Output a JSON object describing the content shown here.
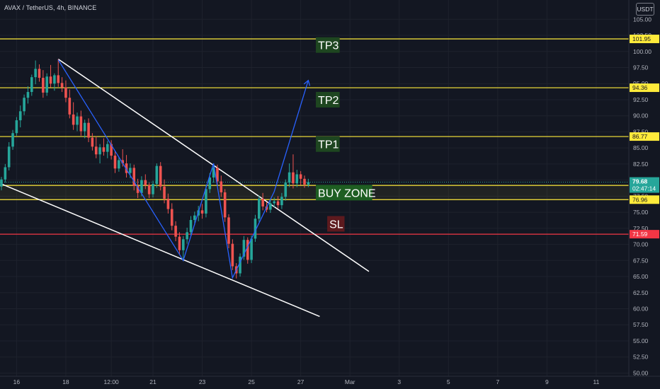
{
  "header": {
    "title": "AVAX / TetherUS, 4h, BINANCE",
    "currency": "USDT"
  },
  "colors": {
    "background": "#131722",
    "up": "#26a69a",
    "down": "#ef5350",
    "level": "#ffeb3b",
    "sl": "#f23645",
    "pattern": "#ffffff",
    "wave": "#2962ff"
  },
  "chart_data": {
    "type": "candlestick",
    "y_axis_ticks": [
      "105.00",
      "102.50",
      "100.00",
      "97.50",
      "95.00",
      "92.50",
      "90.00",
      "87.50",
      "85.00",
      "82.50",
      "80.00",
      "77.50",
      "75.00",
      "72.50",
      "70.00",
      "67.50",
      "65.00",
      "62.50",
      "60.00",
      "57.50",
      "55.00",
      "52.50",
      "50.00"
    ],
    "y_tick_values": [
      105,
      102.5,
      100,
      97.5,
      95,
      92.5,
      90,
      87.5,
      85,
      82.5,
      80,
      77.5,
      75,
      72.5,
      70,
      67.5,
      65,
      62.5,
      60,
      57.5,
      55,
      52.5,
      50
    ],
    "x_axis_ticks": [
      "16",
      "18",
      "12:00",
      "21",
      "23",
      "25",
      "27",
      "Mar",
      "3",
      "5",
      "7",
      "9",
      "11"
    ],
    "x_tick_index": [
      4,
      17,
      29,
      40,
      53,
      66,
      79,
      92,
      105,
      118,
      131,
      144,
      157
    ],
    "ylim": [
      49.5,
      108
    ],
    "last_price": "79.68",
    "countdown": "02:47:14",
    "levels": [
      {
        "name": "TP3",
        "value": "101.95",
        "price": 101.95
      },
      {
        "name": "TP2",
        "value": "94.36",
        "price": 94.36
      },
      {
        "name": "TP1",
        "value": "86.77",
        "price": 86.77
      },
      {
        "name": "BUY ZONE top",
        "value": "79.18",
        "price": 79.18
      },
      {
        "name": "BUY ZONE bottom",
        "value": "76.96",
        "price": 76.96
      },
      {
        "name": "SL",
        "value": "71.59",
        "price": 71.59
      }
    ],
    "annotations": [
      {
        "text": "TP3",
        "price": 101.0,
        "idx": 83,
        "bg": "#1e4620"
      },
      {
        "text": "TP2",
        "price": 92.5,
        "idx": 83,
        "bg": "#1e4620"
      },
      {
        "text": "TP1",
        "price": 85.6,
        "idx": 83,
        "bg": "#1e4620"
      },
      {
        "text": "BUY ZONE",
        "price": 78.05,
        "idx": 83,
        "bg": "#1e5e22"
      },
      {
        "text": "SL",
        "price": 73.2,
        "idx": 86,
        "bg": "#5d1a1e"
      }
    ],
    "buy_zone": {
      "from": 76.96,
      "to": 79.18
    },
    "trendlines": [
      {
        "from": [
          15,
          98.8
        ],
        "to": [
          97,
          65.8
        ]
      },
      {
        "from": [
          0,
          79.4
        ],
        "to": [
          84,
          58.8
        ]
      }
    ],
    "wave_path": [
      [
        15,
        98.7
      ],
      [
        48,
        67.5
      ],
      [
        56,
        82.6
      ],
      [
        61,
        64.8
      ],
      [
        72,
        78.2
      ],
      [
        81,
        95.5
      ]
    ],
    "candles": [
      [
        79.0,
        80.5,
        78.4,
        80.1
      ],
      [
        80.1,
        82.5,
        79.6,
        82.0
      ],
      [
        82.0,
        85.9,
        81.5,
        85.2
      ],
      [
        85.2,
        87.8,
        84.7,
        87.3
      ],
      [
        87.3,
        89.8,
        86.9,
        89.3
      ],
      [
        89.3,
        91.6,
        88.2,
        90.7
      ],
      [
        90.7,
        93.3,
        90.1,
        92.8
      ],
      [
        92.8,
        94.6,
        91.9,
        93.7
      ],
      [
        93.7,
        96.4,
        93.1,
        96.0
      ],
      [
        96.0,
        98.6,
        94.9,
        97.3
      ],
      [
        97.3,
        98.0,
        95.3,
        95.9
      ],
      [
        95.9,
        97.1,
        92.8,
        93.6
      ],
      [
        93.6,
        96.6,
        93.1,
        96.1
      ],
      [
        96.1,
        97.9,
        94.4,
        95.0
      ],
      [
        95.0,
        96.6,
        93.9,
        96.3
      ],
      [
        96.3,
        98.8,
        94.5,
        95.1
      ],
      [
        95.1,
        96.0,
        93.7,
        94.4
      ],
      [
        94.4,
        95.5,
        92.1,
        92.8
      ],
      [
        92.8,
        94.1,
        89.6,
        90.2
      ],
      [
        90.2,
        92.1,
        87.8,
        88.6
      ],
      [
        88.6,
        90.5,
        87.6,
        89.9
      ],
      [
        89.9,
        90.8,
        86.9,
        87.6
      ],
      [
        87.6,
        89.4,
        86.5,
        88.9
      ],
      [
        88.9,
        89.6,
        85.9,
        86.6
      ],
      [
        86.6,
        87.3,
        84.6,
        85.2
      ],
      [
        85.2,
        86.8,
        83.4,
        84.0
      ],
      [
        84.0,
        85.6,
        82.6,
        85.1
      ],
      [
        85.1,
        86.5,
        83.8,
        84.4
      ],
      [
        84.4,
        86.1,
        83.4,
        85.6
      ],
      [
        85.6,
        86.2,
        83.2,
        83.8
      ],
      [
        83.8,
        84.5,
        81.1,
        81.8
      ],
      [
        81.8,
        83.6,
        81.3,
        83.1
      ],
      [
        83.1,
        84.8,
        82.1,
        82.6
      ],
      [
        82.6,
        83.9,
        80.4,
        81.1
      ],
      [
        81.1,
        82.6,
        80.3,
        81.9
      ],
      [
        81.9,
        82.4,
        78.4,
        79.1
      ],
      [
        79.1,
        80.2,
        77.2,
        78.0
      ],
      [
        78.0,
        80.6,
        77.5,
        80.0
      ],
      [
        80.0,
        80.9,
        78.6,
        79.2
      ],
      [
        79.2,
        79.6,
        77.2,
        77.8
      ],
      [
        77.8,
        79.9,
        77.3,
        79.4
      ],
      [
        79.4,
        82.6,
        78.8,
        82.2
      ],
      [
        82.2,
        82.8,
        78.4,
        79.0
      ],
      [
        79.0,
        80.1,
        76.4,
        77.1
      ],
      [
        77.1,
        77.9,
        74.8,
        75.5
      ],
      [
        75.5,
        76.4,
        72.2,
        72.9
      ],
      [
        72.9,
        73.6,
        70.5,
        71.2
      ],
      [
        71.2,
        71.9,
        68.4,
        69.1
      ],
      [
        69.1,
        71.3,
        67.4,
        70.8
      ],
      [
        70.8,
        72.6,
        70.1,
        71.9
      ],
      [
        71.9,
        74.4,
        71.4,
        73.8
      ],
      [
        73.8,
        75.1,
        73.0,
        74.5
      ],
      [
        74.5,
        76.0,
        73.6,
        75.3
      ],
      [
        75.3,
        76.3,
        74.0,
        74.8
      ],
      [
        74.8,
        79.2,
        74.2,
        78.6
      ],
      [
        78.6,
        81.1,
        78.0,
        80.4
      ],
      [
        80.4,
        82.6,
        79.6,
        81.9
      ],
      [
        81.9,
        82.4,
        79.1,
        79.8
      ],
      [
        79.8,
        80.7,
        77.4,
        78.1
      ],
      [
        78.1,
        78.6,
        73.5,
        74.2
      ],
      [
        74.2,
        74.7,
        69.4,
        70.1
      ],
      [
        70.1,
        70.8,
        66.0,
        66.6
      ],
      [
        66.6,
        67.1,
        64.7,
        65.5
      ],
      [
        65.5,
        68.6,
        65.0,
        68.1
      ],
      [
        68.1,
        71.3,
        67.6,
        70.7
      ],
      [
        70.7,
        71.1,
        67.0,
        67.6
      ],
      [
        67.6,
        71.4,
        67.1,
        70.9
      ],
      [
        70.9,
        74.6,
        70.4,
        74.0
      ],
      [
        74.0,
        77.6,
        73.5,
        77.1
      ],
      [
        77.1,
        78.0,
        75.3,
        75.9
      ],
      [
        75.9,
        76.6,
        75.0,
        75.4
      ],
      [
        75.4,
        77.0,
        74.9,
        76.4
      ],
      [
        76.4,
        77.3,
        75.8,
        76.7
      ],
      [
        76.7,
        77.5,
        75.6,
        76.1
      ],
      [
        76.1,
        78.0,
        75.5,
        77.4
      ],
      [
        77.4,
        80.1,
        76.8,
        79.6
      ],
      [
        79.6,
        82.6,
        78.9,
        81.2
      ],
      [
        81.2,
        84.0,
        78.7,
        79.5
      ],
      [
        79.5,
        81.6,
        78.9,
        80.9
      ],
      [
        80.9,
        81.4,
        79.2,
        80.2
      ],
      [
        80.2,
        80.7,
        78.8,
        79.3
      ],
      [
        79.3,
        80.2,
        78.9,
        79.7
      ]
    ]
  }
}
